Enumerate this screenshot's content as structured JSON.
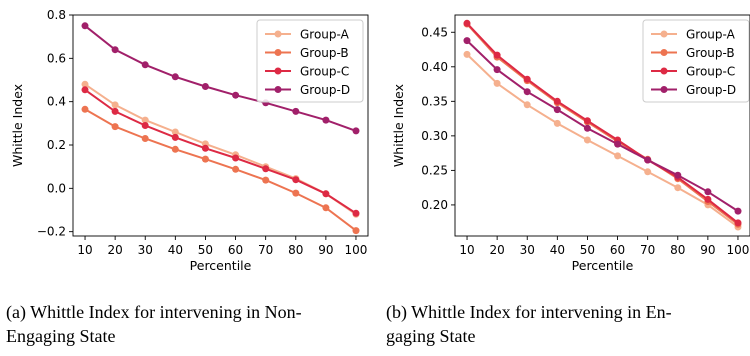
{
  "captions": {
    "a_line1": "(a) Whittle Index for intervening in Non-",
    "a_line2": "Engaging State",
    "b_line1": "(b) Whittle Index for intervening in En-",
    "b_line2": "gaging State"
  },
  "colors": {
    "Group-A": "#f5b08e",
    "Group-B": "#ed7451",
    "Group-C": "#dd2a44",
    "Group-D": "#a1206a"
  },
  "chart_data": [
    {
      "type": "line",
      "title": "",
      "xlabel": "Percentile",
      "ylabel": "Whittle Index",
      "x": [
        10,
        20,
        30,
        40,
        50,
        60,
        70,
        80,
        90,
        100
      ],
      "xticks": [
        10,
        20,
        30,
        40,
        50,
        60,
        70,
        80,
        90,
        100
      ],
      "xtick_labels": [
        "10",
        "20",
        "30",
        "40",
        "50",
        "60",
        "70",
        "80",
        "90",
        "100"
      ],
      "xlim": [
        6,
        104
      ],
      "ylim": [
        -0.22,
        0.8
      ],
      "yticks": [
        -0.2,
        0.0,
        0.2,
        0.4,
        0.6,
        0.8
      ],
      "ytick_labels": [
        "−0.2",
        "0.0",
        "0.2",
        "0.4",
        "0.6",
        "0.8"
      ],
      "grid": false,
      "legend": "top-right",
      "series": [
        {
          "name": "Group-A",
          "values": [
            0.48,
            0.385,
            0.315,
            0.26,
            0.205,
            0.155,
            0.1,
            0.045,
            -0.025,
            -0.12
          ]
        },
        {
          "name": "Group-B",
          "values": [
            0.365,
            0.285,
            0.23,
            0.18,
            0.135,
            0.088,
            0.038,
            -0.022,
            -0.09,
            -0.195
          ]
        },
        {
          "name": "Group-C",
          "values": [
            0.455,
            0.355,
            0.29,
            0.235,
            0.185,
            0.14,
            0.09,
            0.04,
            -0.025,
            -0.115
          ]
        },
        {
          "name": "Group-D",
          "values": [
            0.75,
            0.64,
            0.57,
            0.515,
            0.47,
            0.43,
            0.395,
            0.355,
            0.315,
            0.265
          ]
        }
      ]
    },
    {
      "type": "line",
      "title": "",
      "xlabel": "Percentile",
      "ylabel": "Whittle Index",
      "x": [
        10,
        20,
        30,
        40,
        50,
        60,
        70,
        80,
        90,
        100
      ],
      "xticks": [
        10,
        20,
        30,
        40,
        50,
        60,
        70,
        80,
        90,
        100
      ],
      "xtick_labels": [
        "10",
        "20",
        "30",
        "40",
        "50",
        "60",
        "70",
        "80",
        "90",
        "100"
      ],
      "xlim": [
        6,
        104
      ],
      "ylim": [
        0.155,
        0.475
      ],
      "yticks": [
        0.2,
        0.25,
        0.3,
        0.35,
        0.4,
        0.45
      ],
      "ytick_labels": [
        "0.20",
        "0.25",
        "0.30",
        "0.35",
        "0.40",
        "0.45"
      ],
      "grid": false,
      "legend": "top-right",
      "series": [
        {
          "name": "Group-A",
          "values": [
            0.418,
            0.376,
            0.345,
            0.318,
            0.294,
            0.271,
            0.248,
            0.225,
            0.2,
            0.168
          ]
        },
        {
          "name": "Group-B",
          "values": [
            0.462,
            0.414,
            0.38,
            0.348,
            0.32,
            0.292,
            0.266,
            0.238,
            0.205,
            0.172
          ]
        },
        {
          "name": "Group-C",
          "values": [
            0.463,
            0.417,
            0.382,
            0.35,
            0.322,
            0.294,
            0.265,
            0.24,
            0.208,
            0.174
          ]
        },
        {
          "name": "Group-D",
          "values": [
            0.438,
            0.396,
            0.364,
            0.338,
            0.311,
            0.288,
            0.265,
            0.243,
            0.219,
            0.191
          ]
        }
      ]
    }
  ]
}
